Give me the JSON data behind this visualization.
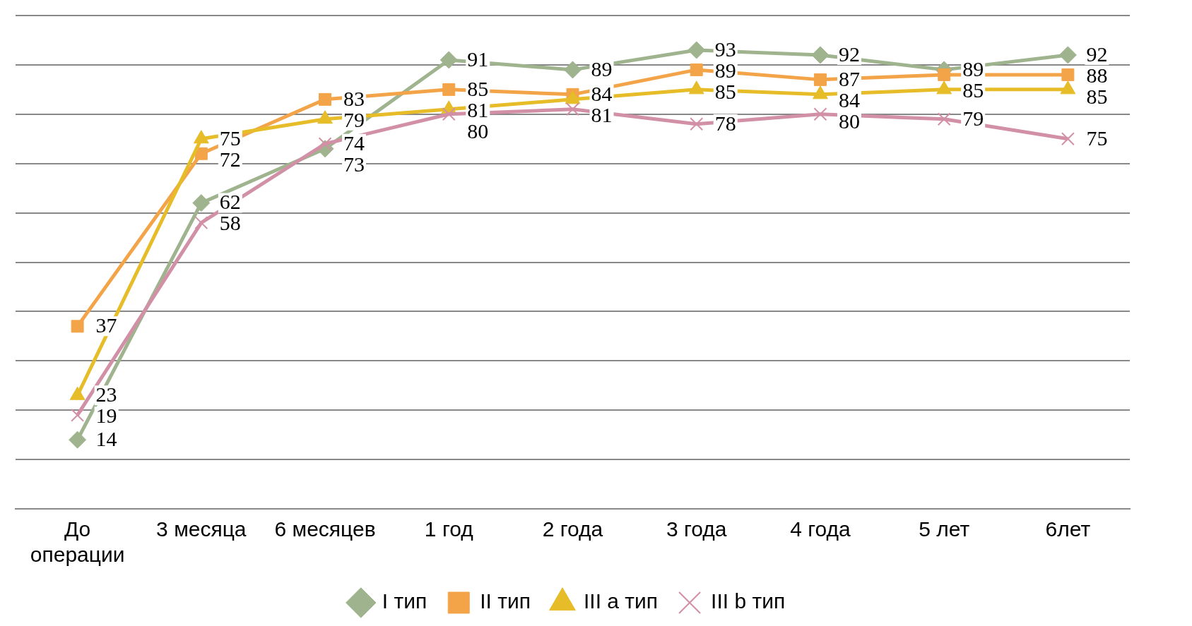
{
  "chart_data": {
    "type": "line",
    "categories": [
      "До операции",
      "3 месяца",
      "6 месяцев",
      "1 год",
      "2 года",
      "3 года",
      "4 года",
      "5 лет",
      "6лет"
    ],
    "series": [
      {
        "name": "I тип",
        "color": "#9fb48e",
        "marker": "diamond",
        "values": [
          14,
          62,
          73,
          91,
          89,
          93,
          92,
          89,
          92
        ],
        "value_labels": [
          "14",
          "62",
          "73",
          "91",
          "89",
          "93",
          "92",
          "89",
          "92"
        ]
      },
      {
        "name": "II тип",
        "color": "#f4a448",
        "marker": "square",
        "values": [
          37,
          72,
          83,
          85,
          84,
          89,
          87,
          88,
          88
        ],
        "value_labels": [
          "37",
          "72",
          "83",
          "85",
          "84",
          "89",
          "87",
          null,
          "88"
        ]
      },
      {
        "name": "III a тип",
        "color": "#e6bc28",
        "marker": "triangle",
        "values": [
          23,
          75,
          79,
          81,
          83,
          85,
          84,
          85,
          85
        ],
        "value_labels": [
          "23",
          "75",
          "79",
          "81",
          null,
          "85",
          "84",
          "85",
          "85"
        ]
      },
      {
        "name": "III b тип",
        "color": "#d290a6",
        "marker": "cross",
        "values": [
          19,
          58,
          74,
          80,
          81,
          78,
          80,
          79,
          75
        ],
        "value_labels": [
          "19",
          "58",
          "74",
          "80",
          "81",
          "78",
          "80",
          "79",
          "75"
        ]
      }
    ],
    "ylim": [
      0,
      100
    ],
    "yticks": [
      {
        "value": 0,
        "label": null
      },
      {
        "value": 10,
        "label": null
      },
      {
        "value": 20,
        "label": null
      },
      {
        "value": 30,
        "label": null
      },
      {
        "value": 40,
        "label": null
      },
      {
        "value": 50,
        "label": null
      },
      {
        "value": 60,
        "label": null
      },
      {
        "value": 70,
        "label": null
      },
      {
        "value": 80,
        "label": null
      },
      {
        "value": 90,
        "label": null
      },
      {
        "value": 100,
        "label": null
      }
    ],
    "tick_labels": "x",
    "grid": "y",
    "legend": "bottom",
    "line_style": "solid"
  }
}
